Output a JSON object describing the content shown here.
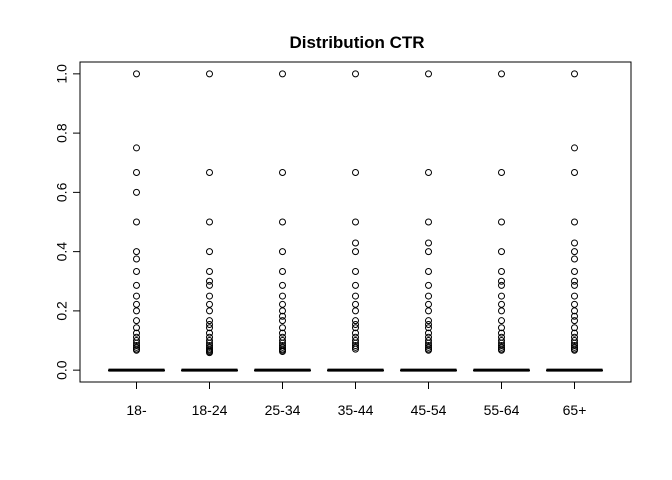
{
  "chart_data": {
    "type": "boxplot",
    "title": "Distribution CTR",
    "xlabel": "",
    "ylabel": "",
    "ylim": [
      -0.04,
      1.04
    ],
    "yticks": [
      0.0,
      0.2,
      0.4,
      0.6,
      0.8,
      1.0
    ],
    "ytick_labels": [
      "0.0",
      "0.2",
      "0.4",
      "0.6",
      "0.8",
      "1.0"
    ],
    "grid": false,
    "categories": [
      "18-",
      "18-24",
      "25-34",
      "35-44",
      "45-54",
      "55-64",
      "65+"
    ],
    "median": [
      0,
      0,
      0,
      0,
      0,
      0,
      0
    ],
    "q1": [
      0,
      0,
      0,
      0,
      0,
      0,
      0
    ],
    "q3": [
      0,
      0,
      0,
      0,
      0,
      0,
      0
    ],
    "whisker_low": [
      0,
      0,
      0,
      0,
      0,
      0,
      0
    ],
    "whisker_high": [
      0,
      0,
      0,
      0,
      0,
      0,
      0
    ],
    "outliers": [
      [
        1.0,
        0.75,
        0.667,
        0.6,
        0.5,
        0.4,
        0.375,
        0.333,
        0.286,
        0.25,
        0.222,
        0.2,
        0.167,
        0.143,
        0.125,
        0.111,
        0.1,
        0.091,
        0.083,
        0.077,
        0.071,
        0.067
      ],
      [
        1.0,
        0.667,
        0.5,
        0.4,
        0.333,
        0.3,
        0.286,
        0.25,
        0.222,
        0.2,
        0.167,
        0.154,
        0.143,
        0.125,
        0.111,
        0.1,
        0.091,
        0.083,
        0.077,
        0.071,
        0.067,
        0.063,
        0.059
      ],
      [
        1.0,
        0.667,
        0.5,
        0.4,
        0.333,
        0.286,
        0.25,
        0.222,
        0.2,
        0.182,
        0.167,
        0.143,
        0.125,
        0.111,
        0.1,
        0.091,
        0.083,
        0.077,
        0.071,
        0.067,
        0.063
      ],
      [
        1.0,
        0.667,
        0.5,
        0.429,
        0.4,
        0.333,
        0.286,
        0.25,
        0.222,
        0.2,
        0.167,
        0.154,
        0.143,
        0.125,
        0.111,
        0.1,
        0.091,
        0.083,
        0.077,
        0.071
      ],
      [
        1.0,
        0.667,
        0.5,
        0.429,
        0.4,
        0.333,
        0.286,
        0.25,
        0.222,
        0.2,
        0.167,
        0.154,
        0.143,
        0.125,
        0.111,
        0.1,
        0.091,
        0.083,
        0.077,
        0.071,
        0.067
      ],
      [
        1.0,
        0.667,
        0.5,
        0.4,
        0.333,
        0.3,
        0.286,
        0.25,
        0.222,
        0.2,
        0.167,
        0.143,
        0.125,
        0.111,
        0.1,
        0.091,
        0.083,
        0.077,
        0.071,
        0.067
      ],
      [
        1.0,
        0.75,
        0.667,
        0.5,
        0.429,
        0.4,
        0.375,
        0.333,
        0.3,
        0.286,
        0.25,
        0.222,
        0.2,
        0.182,
        0.167,
        0.143,
        0.125,
        0.111,
        0.1,
        0.091,
        0.083,
        0.077,
        0.071,
        0.067
      ]
    ],
    "colors": {
      "box": "#000000",
      "outlier": "#000000",
      "background": "#ffffff"
    }
  }
}
